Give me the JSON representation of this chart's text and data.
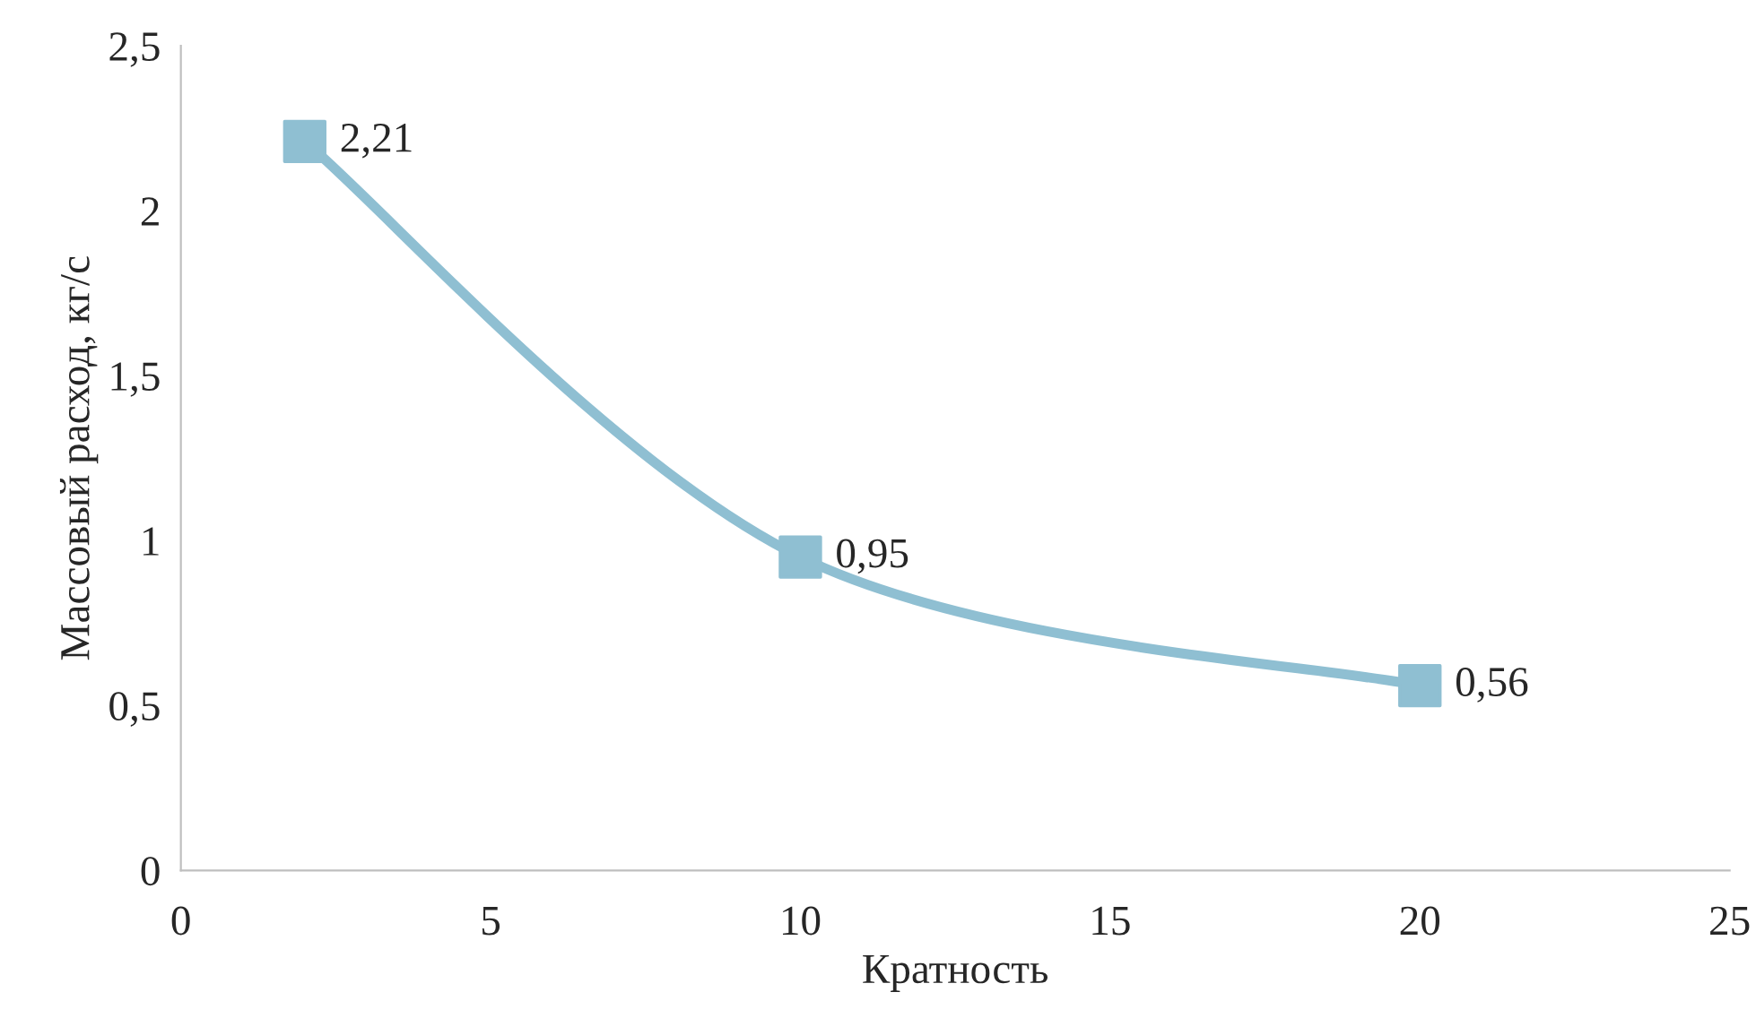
{
  "chart_data": {
    "type": "line",
    "xlabel": "Кратность",
    "ylabel": "Массовый расход, кг/с",
    "x": [
      2,
      10,
      20
    ],
    "series": [
      {
        "color": "#8fbfd2",
        "values": [
          2.21,
          0.95,
          0.56
        ],
        "value_labels": [
          "2,21",
          "0,95",
          "0,56"
        ]
      }
    ],
    "xlim": [
      0,
      25
    ],
    "xticks": [
      0,
      5,
      10,
      15,
      20,
      25
    ],
    "ylim": [
      0,
      2.5
    ],
    "yticks": [
      0,
      {
        "value": 0.5,
        "label": "0,5"
      },
      1,
      {
        "value": 1.5,
        "label": "1,5"
      },
      2,
      {
        "value": 2.5,
        "label": "2,5"
      }
    ],
    "marker": "square",
    "line_style": "solid",
    "grid": false,
    "legend": false
  }
}
